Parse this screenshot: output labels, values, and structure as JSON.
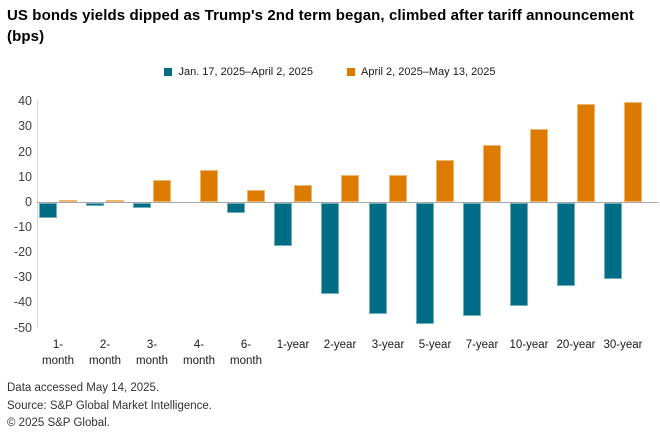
{
  "title": "US bonds yields dipped as Trump's 2nd term began, climbed after tariff announcement (bps)",
  "footer": {
    "lines": [
      "Data accessed May 14, 2025.",
      "Source: S&P Global Market Intelligence.",
      "© 2025 S&P Global."
    ]
  },
  "chart_data": {
    "type": "bar",
    "title": "US bonds yields dipped as Trump's 2nd term began, climbed after tariff announcement (bps)",
    "unit": "bps",
    "categories": [
      "1-month",
      "2-month",
      "3-month",
      "4-month",
      "6-month",
      "1-year",
      "2-year",
      "3-year",
      "5-year",
      "7-year",
      "10-year",
      "20-year",
      "30-year"
    ],
    "xtick_labels": [
      [
        "1-",
        "month"
      ],
      [
        "2-",
        "month"
      ],
      [
        "3-",
        "month"
      ],
      [
        "4-",
        "month"
      ],
      [
        "6-",
        "month"
      ],
      [
        "1-year"
      ],
      [
        "2-year"
      ],
      [
        "3-year"
      ],
      [
        "5-year"
      ],
      [
        "7-year"
      ],
      [
        "10-year"
      ],
      [
        "20-year"
      ],
      [
        "30-year"
      ]
    ],
    "series": [
      {
        "name": "Jan. 17, 2025–April 2, 2025",
        "color": "#006d87",
        "values": [
          -6,
          -1,
          -2,
          0,
          -4,
          -17,
          -36,
          -44,
          -48,
          -45,
          -41,
          -33,
          -30
        ]
      },
      {
        "name": "April 2, 2025–May 13, 2025",
        "color": "#dd7a00",
        "values": [
          1,
          1,
          9,
          13,
          5,
          7,
          11,
          11,
          17,
          23,
          29,
          39,
          40
        ]
      }
    ],
    "ylim": [
      -50,
      40
    ],
    "yticks": [
      40,
      30,
      20,
      10,
      0,
      -10,
      -20,
      -30,
      -40,
      -50
    ],
    "xlabel": "",
    "ylabel": "",
    "grid": false,
    "legend_position": "top"
  }
}
